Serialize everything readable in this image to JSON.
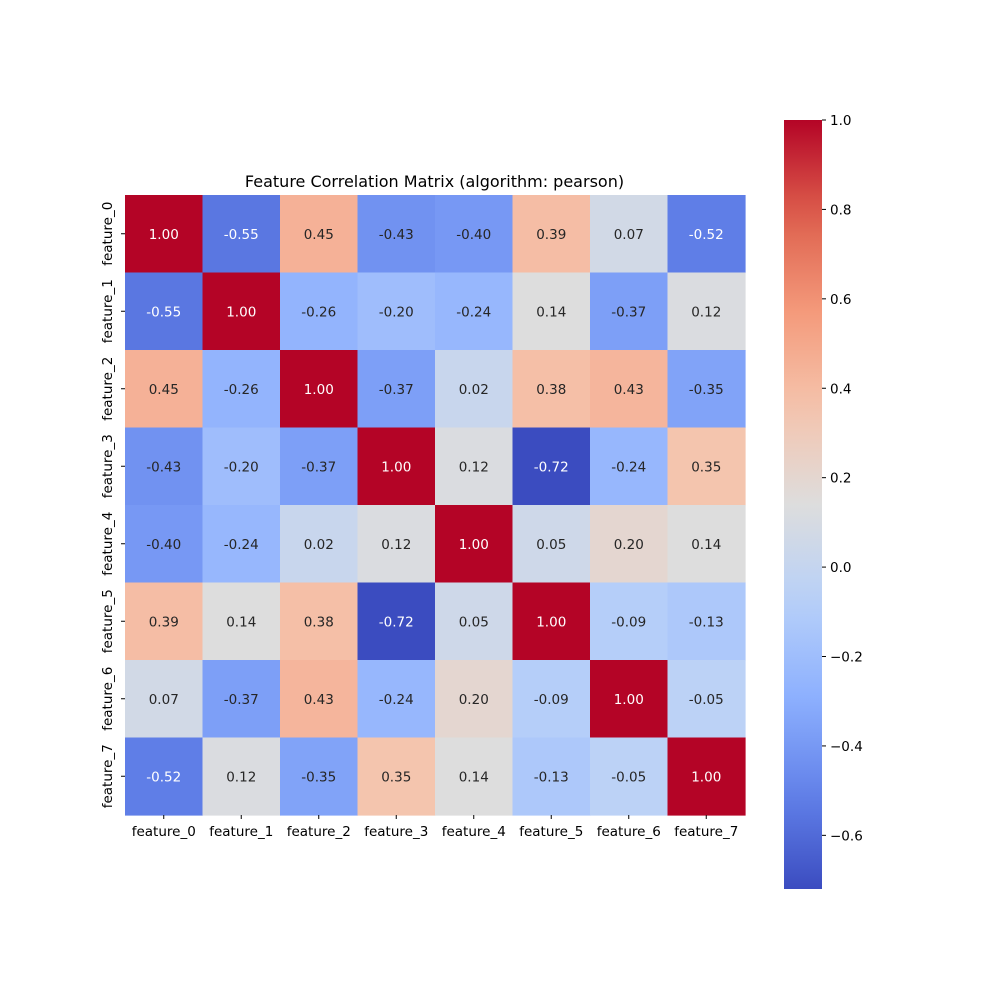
{
  "chart_data": {
    "type": "heatmap",
    "title": "Feature Correlation Matrix (algorithm: pearson)",
    "xlabel": "",
    "ylabel": "",
    "x_labels": [
      "feature_0",
      "feature_1",
      "feature_2",
      "feature_3",
      "feature_4",
      "feature_5",
      "feature_6",
      "feature_7"
    ],
    "y_labels": [
      "feature_0",
      "feature_1",
      "feature_2",
      "feature_3",
      "feature_4",
      "feature_5",
      "feature_6",
      "feature_7"
    ],
    "values": [
      [
        1.0,
        -0.55,
        0.45,
        -0.43,
        -0.4,
        0.39,
        0.07,
        -0.52
      ],
      [
        -0.55,
        1.0,
        -0.26,
        -0.2,
        -0.24,
        0.14,
        -0.37,
        0.12
      ],
      [
        0.45,
        -0.26,
        1.0,
        -0.37,
        0.02,
        0.38,
        0.43,
        -0.35
      ],
      [
        -0.43,
        -0.2,
        -0.37,
        1.0,
        0.12,
        -0.72,
        -0.24,
        0.35
      ],
      [
        -0.4,
        -0.24,
        0.02,
        0.12,
        1.0,
        0.05,
        0.2,
        0.14
      ],
      [
        0.39,
        0.14,
        0.38,
        -0.72,
        0.05,
        1.0,
        -0.09,
        -0.13
      ],
      [
        0.07,
        -0.37,
        0.43,
        -0.24,
        0.2,
        -0.09,
        1.0,
        -0.05
      ],
      [
        -0.52,
        0.12,
        -0.35,
        0.35,
        0.14,
        -0.13,
        -0.05,
        1.0
      ]
    ],
    "annotation_format": "2 decimals",
    "colormap": "coolwarm",
    "colorbar": {
      "range": [
        -0.72,
        1.0
      ],
      "ticks": [
        1.0,
        0.8,
        0.6,
        0.4,
        0.2,
        0.0,
        -0.2,
        -0.4,
        -0.6
      ],
      "tick_labels": [
        "1.0",
        "0.8",
        "0.6",
        "0.4",
        "0.2",
        "0.0",
        "−0.2",
        "−0.4",
        "−0.6"
      ],
      "placement": "right"
    },
    "grid": false
  }
}
